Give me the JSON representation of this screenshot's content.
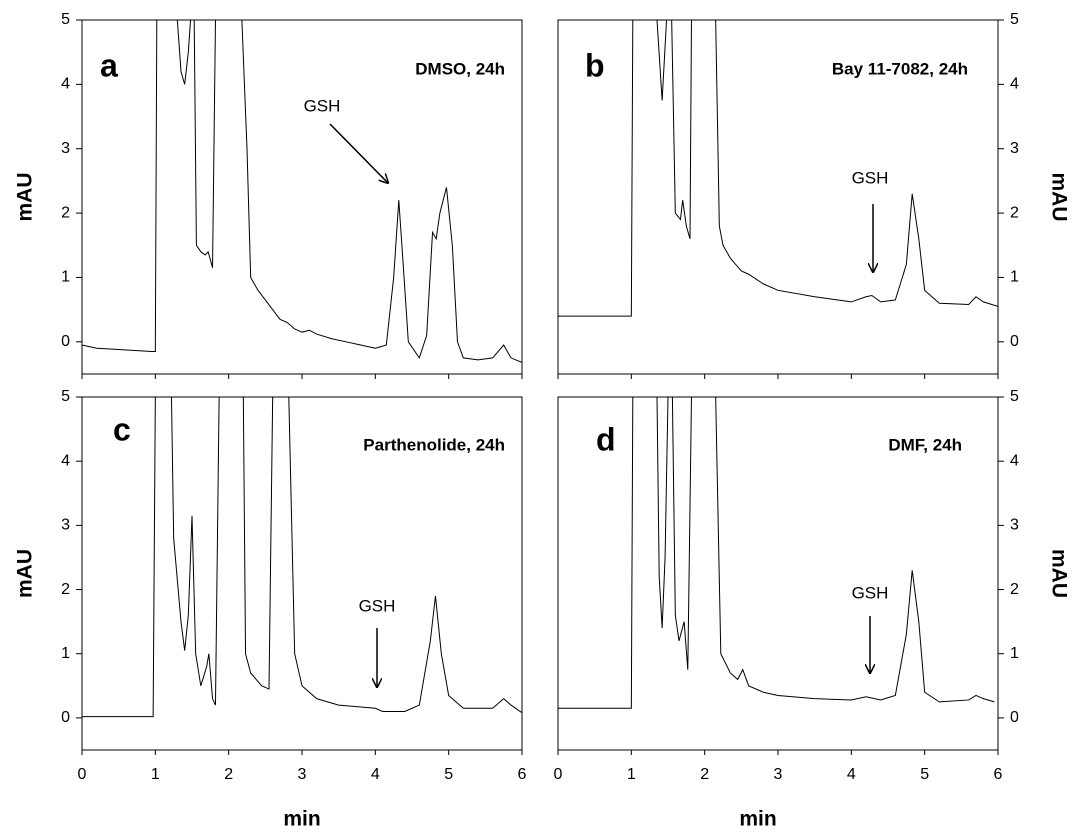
{
  "chart_data": [
    {
      "type": "line",
      "panel_label": "a",
      "annotation": "DMSO, 24h",
      "arrow_label": "GSH",
      "ylabel": "mAU",
      "yaxis_side": "left",
      "show_x_tick_labels": false,
      "xlim": [
        0,
        6
      ],
      "xticks": [
        0,
        1,
        2,
        3,
        4,
        5,
        6
      ],
      "ylim": [
        -0.5,
        5
      ],
      "yticks": [
        0,
        1,
        2,
        3,
        4,
        5
      ],
      "series": [
        {
          "color": "#000000",
          "x": [
            0,
            0.2,
            0.5,
            0.95,
            1.0,
            1.02,
            1.3,
            1.35,
            1.4,
            1.45,
            1.48,
            1.53,
            1.56,
            1.62,
            1.68,
            1.72,
            1.78,
            1.82,
            2.18,
            2.25,
            2.3,
            2.4,
            2.5,
            2.6,
            2.7,
            2.8,
            2.9,
            3.0,
            3.1,
            3.2,
            3.4,
            3.6,
            3.8,
            4.0,
            4.15,
            4.25,
            4.32,
            4.38,
            4.45,
            4.6,
            4.7,
            4.78,
            4.83,
            4.88,
            4.97,
            5.05,
            5.12,
            5.2,
            5.4,
            5.6,
            5.75,
            5.85,
            6.0
          ],
          "values": [
            -0.05,
            -0.1,
            -0.12,
            -0.15,
            -0.15,
            5,
            5,
            4.2,
            4.0,
            4.5,
            5,
            5,
            1.5,
            1.4,
            1.35,
            1.4,
            1.15,
            5,
            5,
            3,
            1.0,
            0.8,
            0.65,
            0.5,
            0.35,
            0.3,
            0.2,
            0.15,
            0.18,
            0.12,
            0.05,
            0.0,
            -0.05,
            -0.1,
            -0.05,
            1.0,
            2.2,
            1.2,
            0.0,
            -0.25,
            0.1,
            1.7,
            1.6,
            2.0,
            2.4,
            1.5,
            0.0,
            -0.25,
            -0.28,
            -0.25,
            -0.05,
            -0.25,
            -0.32
          ]
        }
      ]
    },
    {
      "type": "line",
      "panel_label": "b",
      "annotation": "Bay 11-7082, 24h",
      "arrow_label": "GSH",
      "ylabel": "mAU",
      "yaxis_side": "right",
      "show_x_tick_labels": false,
      "xlim": [
        0,
        6
      ],
      "xticks": [
        0,
        1,
        2,
        3,
        4,
        5,
        6
      ],
      "ylim": [
        -0.5,
        5
      ],
      "yticks": [
        0,
        1,
        2,
        3,
        4,
        5
      ],
      "series": [
        {
          "color": "#000000",
          "x": [
            0,
            0.5,
            0.98,
            1.0,
            1.02,
            1.35,
            1.42,
            1.48,
            1.55,
            1.6,
            1.67,
            1.7,
            1.75,
            1.8,
            1.82,
            2.15,
            2.2,
            2.25,
            2.35,
            2.5,
            2.6,
            2.8,
            3.0,
            3.5,
            4.0,
            4.2,
            4.28,
            4.4,
            4.6,
            4.75,
            4.83,
            4.92,
            5.0,
            5.2,
            5.6,
            5.7,
            5.8,
            6.0
          ],
          "values": [
            0.4,
            0.4,
            0.4,
            0.4,
            5,
            5,
            3.75,
            5,
            5,
            2.0,
            1.9,
            2.2,
            1.8,
            1.6,
            5,
            5,
            1.8,
            1.5,
            1.3,
            1.1,
            1.05,
            0.9,
            0.8,
            0.7,
            0.62,
            0.7,
            0.72,
            0.62,
            0.65,
            1.2,
            2.3,
            1.6,
            0.8,
            0.6,
            0.58,
            0.7,
            0.62,
            0.55
          ]
        }
      ]
    },
    {
      "type": "line",
      "panel_label": "c",
      "annotation": "Parthenolide, 24h",
      "arrow_label": "GSH",
      "ylabel": "mAU",
      "xlabel": "min",
      "yaxis_side": "left",
      "show_x_tick_labels": true,
      "xlim": [
        0,
        6
      ],
      "xticks": [
        0,
        1,
        2,
        3,
        4,
        5,
        6
      ],
      "ylim": [
        -0.5,
        5
      ],
      "yticks": [
        0,
        1,
        2,
        3,
        4,
        5
      ],
      "series": [
        {
          "color": "#000000",
          "x": [
            0,
            0.5,
            0.97,
            1.0,
            1.22,
            1.25,
            1.35,
            1.4,
            1.45,
            1.5,
            1.55,
            1.62,
            1.7,
            1.73,
            1.78,
            1.82,
            1.87,
            2.2,
            2.23,
            2.3,
            2.45,
            2.55,
            2.6,
            2.82,
            2.9,
            3.0,
            3.2,
            3.5,
            3.8,
            4.0,
            4.1,
            4.4,
            4.6,
            4.75,
            4.82,
            4.9,
            5.0,
            5.2,
            5.6,
            5.75,
            5.85,
            6.0
          ],
          "values": [
            0.02,
            0.02,
            0.02,
            5,
            5,
            2.8,
            1.5,
            1.05,
            1.6,
            3.15,
            1.0,
            0.5,
            0.8,
            1.0,
            0.3,
            0.2,
            5,
            5,
            1.0,
            0.7,
            0.5,
            0.45,
            5,
            5,
            1.0,
            0.5,
            0.3,
            0.2,
            0.17,
            0.15,
            0.1,
            0.1,
            0.2,
            1.2,
            1.9,
            1.0,
            0.35,
            0.15,
            0.15,
            0.3,
            0.2,
            0.08
          ]
        }
      ]
    },
    {
      "type": "line",
      "panel_label": "d",
      "annotation": "DMF, 24h",
      "arrow_label": "GSH",
      "ylabel": "mAU",
      "xlabel": "min",
      "yaxis_side": "right",
      "show_x_tick_labels": true,
      "xlim": [
        0,
        6
      ],
      "xticks": [
        0,
        1,
        2,
        3,
        4,
        5,
        6
      ],
      "ylim": [
        -0.5,
        5
      ],
      "yticks": [
        0,
        1,
        2,
        3,
        4,
        5
      ],
      "series": [
        {
          "color": "#000000",
          "x": [
            0,
            0.5,
            0.98,
            1.0,
            1.02,
            1.35,
            1.38,
            1.42,
            1.46,
            1.5,
            1.56,
            1.6,
            1.65,
            1.72,
            1.77,
            1.82,
            2.15,
            2.22,
            2.35,
            2.45,
            2.52,
            2.6,
            2.8,
            3.0,
            3.5,
            4.0,
            4.2,
            4.4,
            4.6,
            4.75,
            4.83,
            4.92,
            5.0,
            5.2,
            5.6,
            5.7,
            5.8,
            5.95
          ],
          "values": [
            0.15,
            0.15,
            0.15,
            0.15,
            5,
            5,
            2.2,
            1.4,
            2.5,
            5,
            5,
            1.6,
            1.2,
            1.5,
            0.75,
            5,
            5,
            1.0,
            0.7,
            0.6,
            0.75,
            0.5,
            0.4,
            0.35,
            0.3,
            0.28,
            0.33,
            0.28,
            0.35,
            1.3,
            2.3,
            1.5,
            0.4,
            0.25,
            0.28,
            0.35,
            0.3,
            0.25
          ]
        }
      ]
    }
  ]
}
